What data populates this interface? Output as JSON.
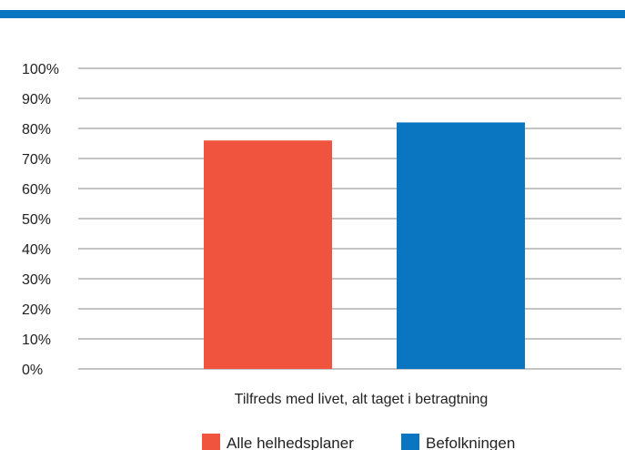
{
  "chart_data": {
    "type": "bar",
    "categories": [
      "Tilfreds med livet, alt taget i betragtning"
    ],
    "series": [
      {
        "name": "Alle helhedsplaner",
        "values": [
          76
        ],
        "color": "#f0533e"
      },
      {
        "name": "Befolkningen",
        "values": [
          82
        ],
        "color": "#0a76c1"
      }
    ],
    "title": "",
    "xlabel": "",
    "ylabel": "",
    "ylim": [
      0,
      100
    ],
    "yticks": [
      "0%",
      "10%",
      "20%",
      "30%",
      "40%",
      "50%",
      "60%",
      "70%",
      "80%",
      "90%",
      "100%"
    ],
    "grid": true,
    "legend_position": "bottom"
  },
  "colors": {
    "accent_bar": "#0a76c1",
    "gridline": "#8a8a8a"
  }
}
